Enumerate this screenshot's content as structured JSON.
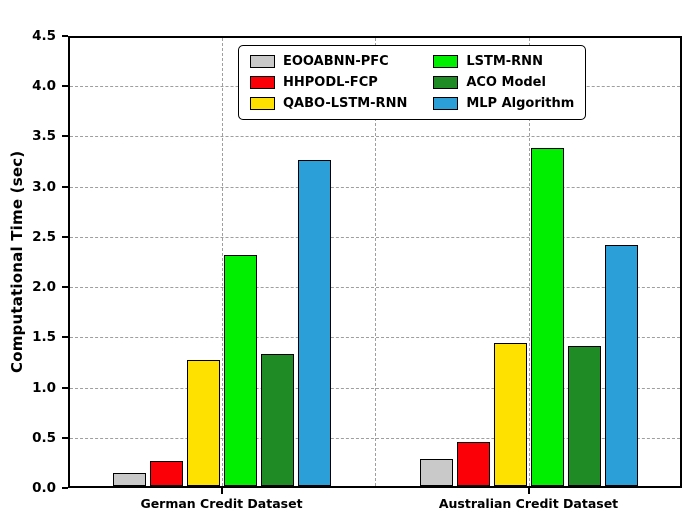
{
  "figure": {
    "background": "#ffffff",
    "axis_color": "#000000",
    "grid_color": "#9f9f9f"
  },
  "chart_data": {
    "type": "bar",
    "title": "",
    "xlabel": "",
    "ylabel": "Computational Time (sec)",
    "ylim": [
      0,
      4.5
    ],
    "ytick_step": 0.5,
    "yticks": [
      0.0,
      0.5,
      1.0,
      1.5,
      2.0,
      2.5,
      3.0,
      3.5,
      4.0,
      4.5
    ],
    "grid": "dashed",
    "legend_position": "top-center-inside",
    "categories": [
      "German Credit Dataset",
      "Australian Credit Dataset"
    ],
    "series": [
      {
        "name": "EOOABNN-PFC",
        "color": "#c9c9c9",
        "values": [
          0.13,
          0.27
        ]
      },
      {
        "name": "HHPODL-FCP",
        "color": "#fb0006",
        "values": [
          0.25,
          0.44
        ]
      },
      {
        "name": "QABO-LSTM-RNN",
        "color": "#ffe100",
        "values": [
          1.25,
          1.42
        ]
      },
      {
        "name": "LSTM-RNN",
        "color": "#00ee00",
        "values": [
          2.3,
          3.37
        ]
      },
      {
        "name": "ACO Model",
        "color": "#1f8b24",
        "values": [
          1.31,
          1.39
        ]
      },
      {
        "name": "MLP Algorithm",
        "color": "#2a9fd8",
        "values": [
          3.25,
          2.4
        ]
      }
    ]
  }
}
